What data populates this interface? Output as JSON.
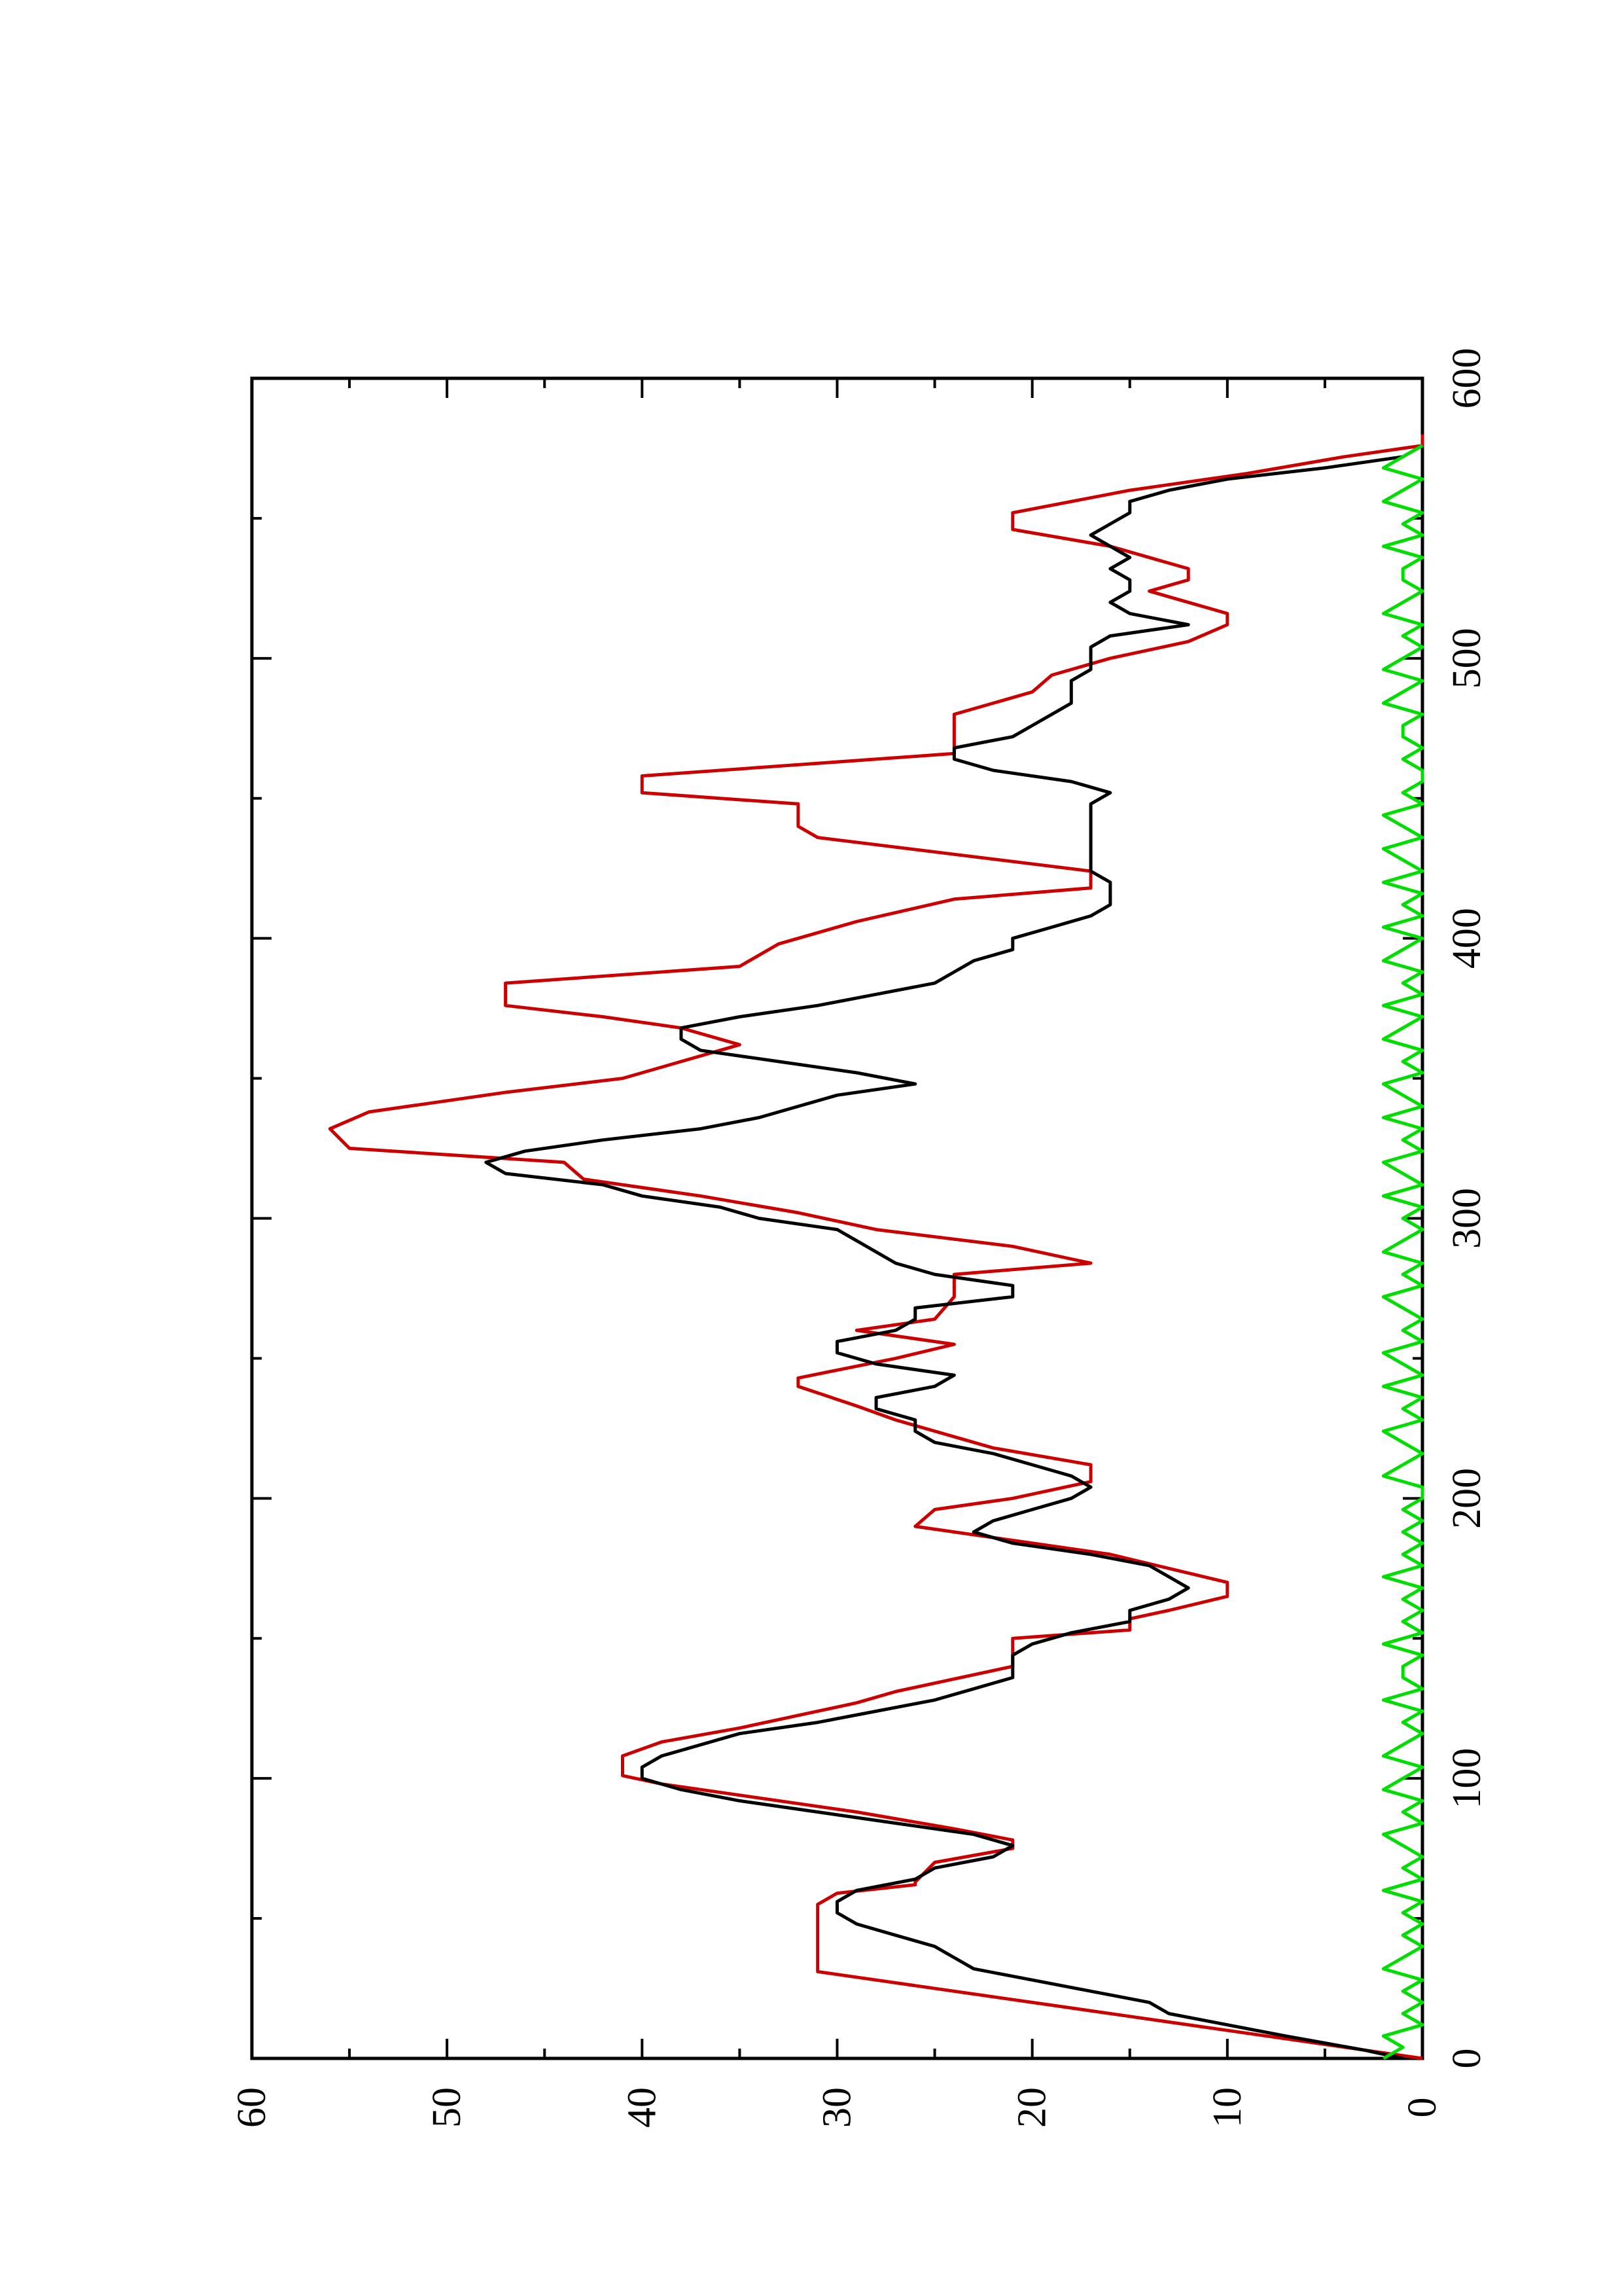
{
  "chart_data": {
    "type": "line",
    "title": "",
    "xlabel": "",
    "ylabel": "",
    "orientation": "rotated 90 degrees counter-clockwise on the page",
    "xlim": [
      0,
      600
    ],
    "ylim": [
      0,
      60
    ],
    "x_ticks": [
      0,
      100,
      200,
      300,
      400,
      500,
      600
    ],
    "x_ticks_minor": [
      50,
      150,
      250,
      350,
      450,
      550
    ],
    "y_ticks": [
      0,
      10,
      20,
      30,
      40,
      50,
      60
    ],
    "y_ticks_minor": [
      5,
      15,
      25,
      35,
      45,
      55
    ],
    "x_tick_labels": [
      "0",
      "100",
      "200",
      "300",
      "400",
      "500",
      "600"
    ],
    "y_tick_labels": [
      "0",
      "10",
      "20",
      "30",
      "40",
      "50",
      "60"
    ],
    "grid": false,
    "legend": "none",
    "series": [
      {
        "color": "#cc0000",
        "x": [
          0,
          10,
          13,
          15,
          26,
          30,
          31,
          46,
          50,
          55,
          59,
          62,
          63,
          70,
          75,
          78,
          82,
          88,
          98,
          101,
          104,
          108,
          113,
          118,
          127,
          131,
          140,
          146,
          150,
          153,
          157,
          160,
          165,
          170,
          180,
          190,
          196,
          200,
          206,
          212,
          218,
          222,
          228,
          233,
          240,
          243,
          250,
          255,
          260,
          264,
          272,
          280,
          284,
          290,
          296,
          302,
          308,
          314,
          320,
          325,
          332,
          338,
          345,
          350,
          356,
          362,
          368,
          372,
          376,
          384,
          390,
          398,
          406,
          414,
          418,
          424,
          430,
          436,
          440,
          448,
          452,
          458,
          462,
          466,
          474,
          480,
          488,
          494,
          500,
          506,
          512,
          516,
          520,
          524,
          528,
          532,
          536,
          540,
          546,
          552,
          560,
          566,
          572,
          576,
          580
        ],
        "y": [
          0,
          10,
          13,
          15,
          26,
          30,
          31,
          31,
          31,
          31,
          30,
          26,
          26,
          25,
          21,
          21,
          24,
          29,
          39,
          41,
          41,
          41,
          39,
          35,
          29,
          27,
          21,
          21,
          21,
          15,
          15,
          13,
          10,
          10,
          16,
          26,
          25,
          21,
          17,
          17,
          22,
          24,
          27,
          29,
          32,
          32,
          27,
          24,
          29,
          25,
          24,
          24,
          17,
          21,
          28,
          32,
          37,
          43,
          44,
          55,
          56,
          54,
          47,
          41,
          38,
          35,
          38,
          42,
          47,
          47,
          35,
          33,
          29,
          24,
          17,
          17,
          24,
          31,
          32,
          32,
          40,
          40,
          32,
          24,
          24,
          24,
          20,
          19,
          16,
          12,
          10,
          10,
          12,
          14,
          12,
          12,
          14,
          16,
          21,
          21,
          15,
          9,
          4,
          0,
          0
        ]
      },
      {
        "color": "#000000",
        "x": [
          0,
          3,
          8,
          12,
          16,
          20,
          24,
          28,
          32,
          36,
          40,
          44,
          48,
          52,
          56,
          60,
          64,
          68,
          72,
          76,
          80,
          84,
          88,
          92,
          96,
          100,
          104,
          108,
          112,
          116,
          120,
          124,
          128,
          132,
          136,
          140,
          144,
          148,
          152,
          156,
          160,
          164,
          168,
          172,
          176,
          180,
          184,
          188,
          192,
          196,
          200,
          204,
          208,
          212,
          216,
          220,
          224,
          228,
          232,
          236,
          240,
          244,
          248,
          252,
          256,
          260,
          264,
          268,
          272,
          276,
          280,
          284,
          288,
          292,
          296,
          300,
          304,
          308,
          312,
          316,
          320,
          324,
          328,
          332,
          336,
          340,
          344,
          348,
          352,
          356,
          360,
          364,
          368,
          372,
          376,
          380,
          384,
          388,
          392,
          396,
          400,
          404,
          408,
          412,
          416,
          420,
          424,
          428,
          432,
          436,
          440,
          444,
          448,
          452,
          456,
          460,
          464,
          468,
          472,
          476,
          480,
          484,
          488,
          492,
          496,
          500,
          504,
          508,
          512,
          516,
          520,
          524,
          528,
          532,
          536,
          540,
          544,
          548,
          552,
          556,
          560,
          564,
          568,
          572,
          576
        ],
        "y": [
          1,
          3,
          7,
          10,
          13,
          14,
          17,
          20,
          23,
          24,
          25,
          27,
          29,
          30,
          30,
          29,
          26,
          25,
          22,
          21,
          23,
          27,
          31,
          35,
          38,
          40,
          40,
          39,
          37,
          35,
          31,
          28,
          25,
          23,
          21,
          21,
          21,
          20,
          18,
          15,
          15,
          13,
          12,
          13,
          14,
          17,
          21,
          23,
          22,
          20,
          18,
          17,
          18,
          20,
          22,
          25,
          26,
          26,
          28,
          28,
          25,
          24,
          28,
          30,
          30,
          27,
          26,
          26,
          21,
          21,
          25,
          27,
          28,
          29,
          30,
          34,
          36,
          40,
          42,
          47,
          48,
          46,
          42,
          37,
          34,
          32,
          30,
          26,
          29,
          33,
          37,
          38,
          38,
          35,
          31,
          28,
          25,
          24,
          23,
          21,
          21,
          19,
          17,
          16,
          16,
          16,
          17,
          17,
          17,
          17,
          17,
          17,
          17,
          16,
          18,
          22,
          24,
          24,
          21,
          20,
          19,
          18,
          18,
          18,
          17,
          17,
          17,
          16,
          12,
          15,
          16,
          15,
          15,
          16,
          15,
          16,
          17,
          16,
          15,
          15,
          13,
          10,
          5,
          1,
          0
        ]
      },
      {
        "color": "#00dd00",
        "x": [
          0,
          4,
          8,
          12,
          16,
          20,
          24,
          28,
          32,
          36,
          40,
          44,
          48,
          52,
          56,
          60,
          64,
          68,
          72,
          76,
          80,
          84,
          88,
          92,
          96,
          100,
          104,
          108,
          112,
          116,
          120,
          124,
          128,
          132,
          136,
          140,
          144,
          148,
          152,
          156,
          160,
          164,
          168,
          172,
          176,
          180,
          184,
          188,
          192,
          196,
          200,
          204,
          208,
          212,
          216,
          220,
          224,
          228,
          232,
          236,
          240,
          244,
          248,
          252,
          256,
          260,
          264,
          268,
          272,
          276,
          280,
          284,
          288,
          292,
          296,
          300,
          304,
          308,
          312,
          316,
          320,
          324,
          328,
          332,
          336,
          340,
          344,
          348,
          352,
          356,
          360,
          364,
          368,
          372,
          376,
          380,
          384,
          388,
          392,
          396,
          400,
          404,
          408,
          412,
          416,
          420,
          424,
          428,
          432,
          436,
          440,
          444,
          448,
          452,
          456,
          460,
          464,
          468,
          472,
          476,
          480,
          484,
          488,
          492,
          496,
          500,
          504,
          508,
          512,
          516,
          520,
          524,
          528,
          532,
          536,
          540,
          544,
          548,
          552,
          556,
          560,
          564,
          568,
          572,
          576
        ],
        "y": [
          2,
          1,
          2,
          0,
          1,
          0,
          1,
          0,
          2,
          1,
          0,
          1,
          0,
          1,
          0,
          2,
          0,
          1,
          0,
          1,
          2,
          0,
          1,
          0,
          2,
          1,
          0,
          2,
          1,
          0,
          1,
          0,
          2,
          0,
          1,
          1,
          0,
          2,
          0,
          1,
          0,
          1,
          0,
          2,
          0,
          1,
          0,
          1,
          0,
          1,
          0,
          0,
          2,
          1,
          0,
          1,
          2,
          0,
          1,
          0,
          2,
          0,
          1,
          2,
          0,
          1,
          0,
          1,
          2,
          0,
          1,
          0,
          2,
          1,
          0,
          1,
          0,
          2,
          0,
          1,
          2,
          0,
          1,
          0,
          2,
          0,
          1,
          2,
          0,
          1,
          0,
          2,
          1,
          0,
          2,
          0,
          1,
          0,
          2,
          1,
          0,
          2,
          0,
          1,
          0,
          2,
          0,
          1,
          2,
          0,
          1,
          2,
          0,
          1,
          0,
          0,
          1,
          0,
          1,
          1,
          0,
          2,
          1,
          0,
          2,
          1,
          0,
          1,
          0,
          2,
          1,
          0,
          1,
          1,
          0,
          2,
          0,
          1,
          0,
          2,
          1,
          0,
          2,
          1,
          0
        ]
      }
    ]
  }
}
